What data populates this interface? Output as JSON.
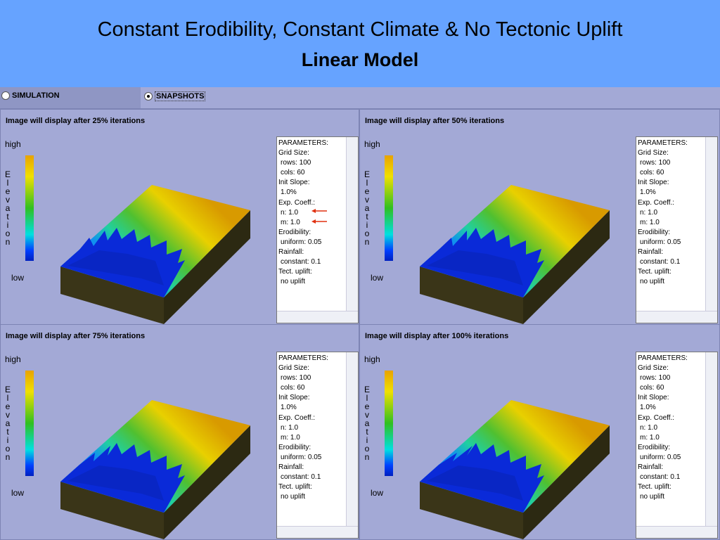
{
  "header": {
    "title": "Constant Erodibility, Constant Climate & No Tectonic Uplift",
    "subtitle": "Linear Model"
  },
  "tabs": [
    "SIMULATION",
    "SNAPSHOTS"
  ],
  "panels": [
    {
      "caption": "Image will display after 25% iterations",
      "high": "high",
      "axis": "Elevation",
      "low": "low",
      "parameters": [
        "PARAMETERS:",
        "Grid Size:",
        "rows: 100",
        "cols: 60",
        "Init Slope:",
        "1.0%",
        "Exp. Coeff.:",
        "n: 1.0",
        "m: 1.0",
        "Erodibility:",
        "uniform: 0.05",
        "Rainfall:",
        "constant: 0.1",
        "Tect. uplift:",
        "no uplift"
      ]
    },
    {
      "caption": "Image will display after 50% iterations",
      "high": "high",
      "axis": "Elevation",
      "low": "low",
      "parameters": [
        "PARAMETERS:",
        "Grid Size:",
        "rows: 100",
        "cols: 60",
        "Init Slope:",
        "1.0%",
        "Exp. Coeff.:",
        "n: 1.0",
        "m: 1.0",
        "Erodibility:",
        "uniform: 0.05",
        "Rainfall:",
        "constant: 0.1",
        "Tect. uplift:",
        "no uplift"
      ]
    },
    {
      "caption": "Image will display after 75% iterations",
      "high": "high",
      "axis": "Elevation",
      "low": "low",
      "parameters": [
        "PARAMETERS:",
        "Grid Size:",
        "rows: 100",
        "cols: 60",
        "Init Slope:",
        "1.0%",
        "Exp. Coeff.:",
        "n: 1.0",
        "m: 1.0",
        "Erodibility:",
        "uniform: 0.05",
        "Rainfall:",
        "constant: 0.1",
        "Tect. uplift:",
        "no uplift"
      ]
    },
    {
      "caption": "Image will display after 100% iterations",
      "high": "high",
      "axis": "Elevation",
      "low": "low",
      "parameters": [
        "PARAMETERS:",
        "Grid Size:",
        "rows: 100",
        "cols: 60",
        "Init Slope:",
        "1.0%",
        "Exp. Coeff.:",
        "n: 1.0",
        "m: 1.0",
        "Erodibility:",
        "uniform: 0.05",
        "Rainfall:",
        "constant: 0.1",
        "Tect. uplift:",
        "no uplift"
      ]
    }
  ]
}
